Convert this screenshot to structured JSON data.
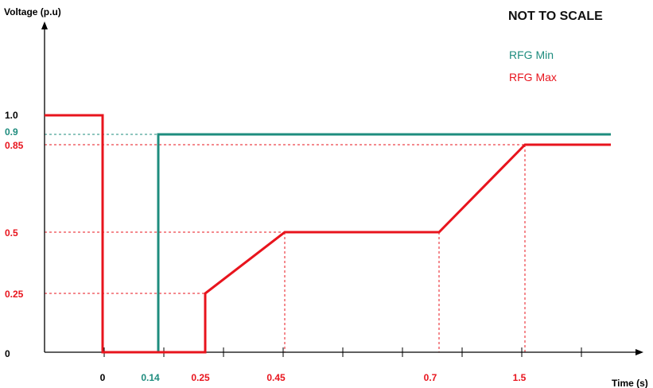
{
  "chart_data": {
    "type": "line",
    "title": "",
    "note": "NOT TO SCALE",
    "ylabel": "Voltage (p.u)",
    "xlabel": "Time (s)",
    "y_tick_labels": [
      "0",
      "0.25",
      "0.5",
      "0.85",
      "0.9",
      "1.0"
    ],
    "x_tick_labels": [
      "0",
      "0.14",
      "0.25",
      "0.45",
      "0.7",
      "1.5"
    ],
    "ylim": [
      0,
      1.0
    ],
    "grid": false,
    "legend_position": "top-right",
    "series": [
      {
        "name": "RFG Min",
        "color": "#1e8c7e",
        "points": [
          {
            "x": "0",
            "y": 0
          },
          {
            "x": "0.14",
            "y": 0
          },
          {
            "x": "0.14",
            "y": 0.9
          },
          {
            "x": "end",
            "y": 0.9
          }
        ]
      },
      {
        "name": "RFG Max",
        "color": "#e8141d",
        "points": [
          {
            "x": "start",
            "y": 1.0
          },
          {
            "x": "0",
            "y": 1.0
          },
          {
            "x": "0",
            "y": 0
          },
          {
            "x": "0.25",
            "y": 0
          },
          {
            "x": "0.25",
            "y": 0.25
          },
          {
            "x": "0.45",
            "y": 0.5
          },
          {
            "x": "0.7",
            "y": 0.5
          },
          {
            "x": "1.5",
            "y": 0.85
          },
          {
            "x": "end",
            "y": 0.85
          }
        ]
      }
    ]
  }
}
